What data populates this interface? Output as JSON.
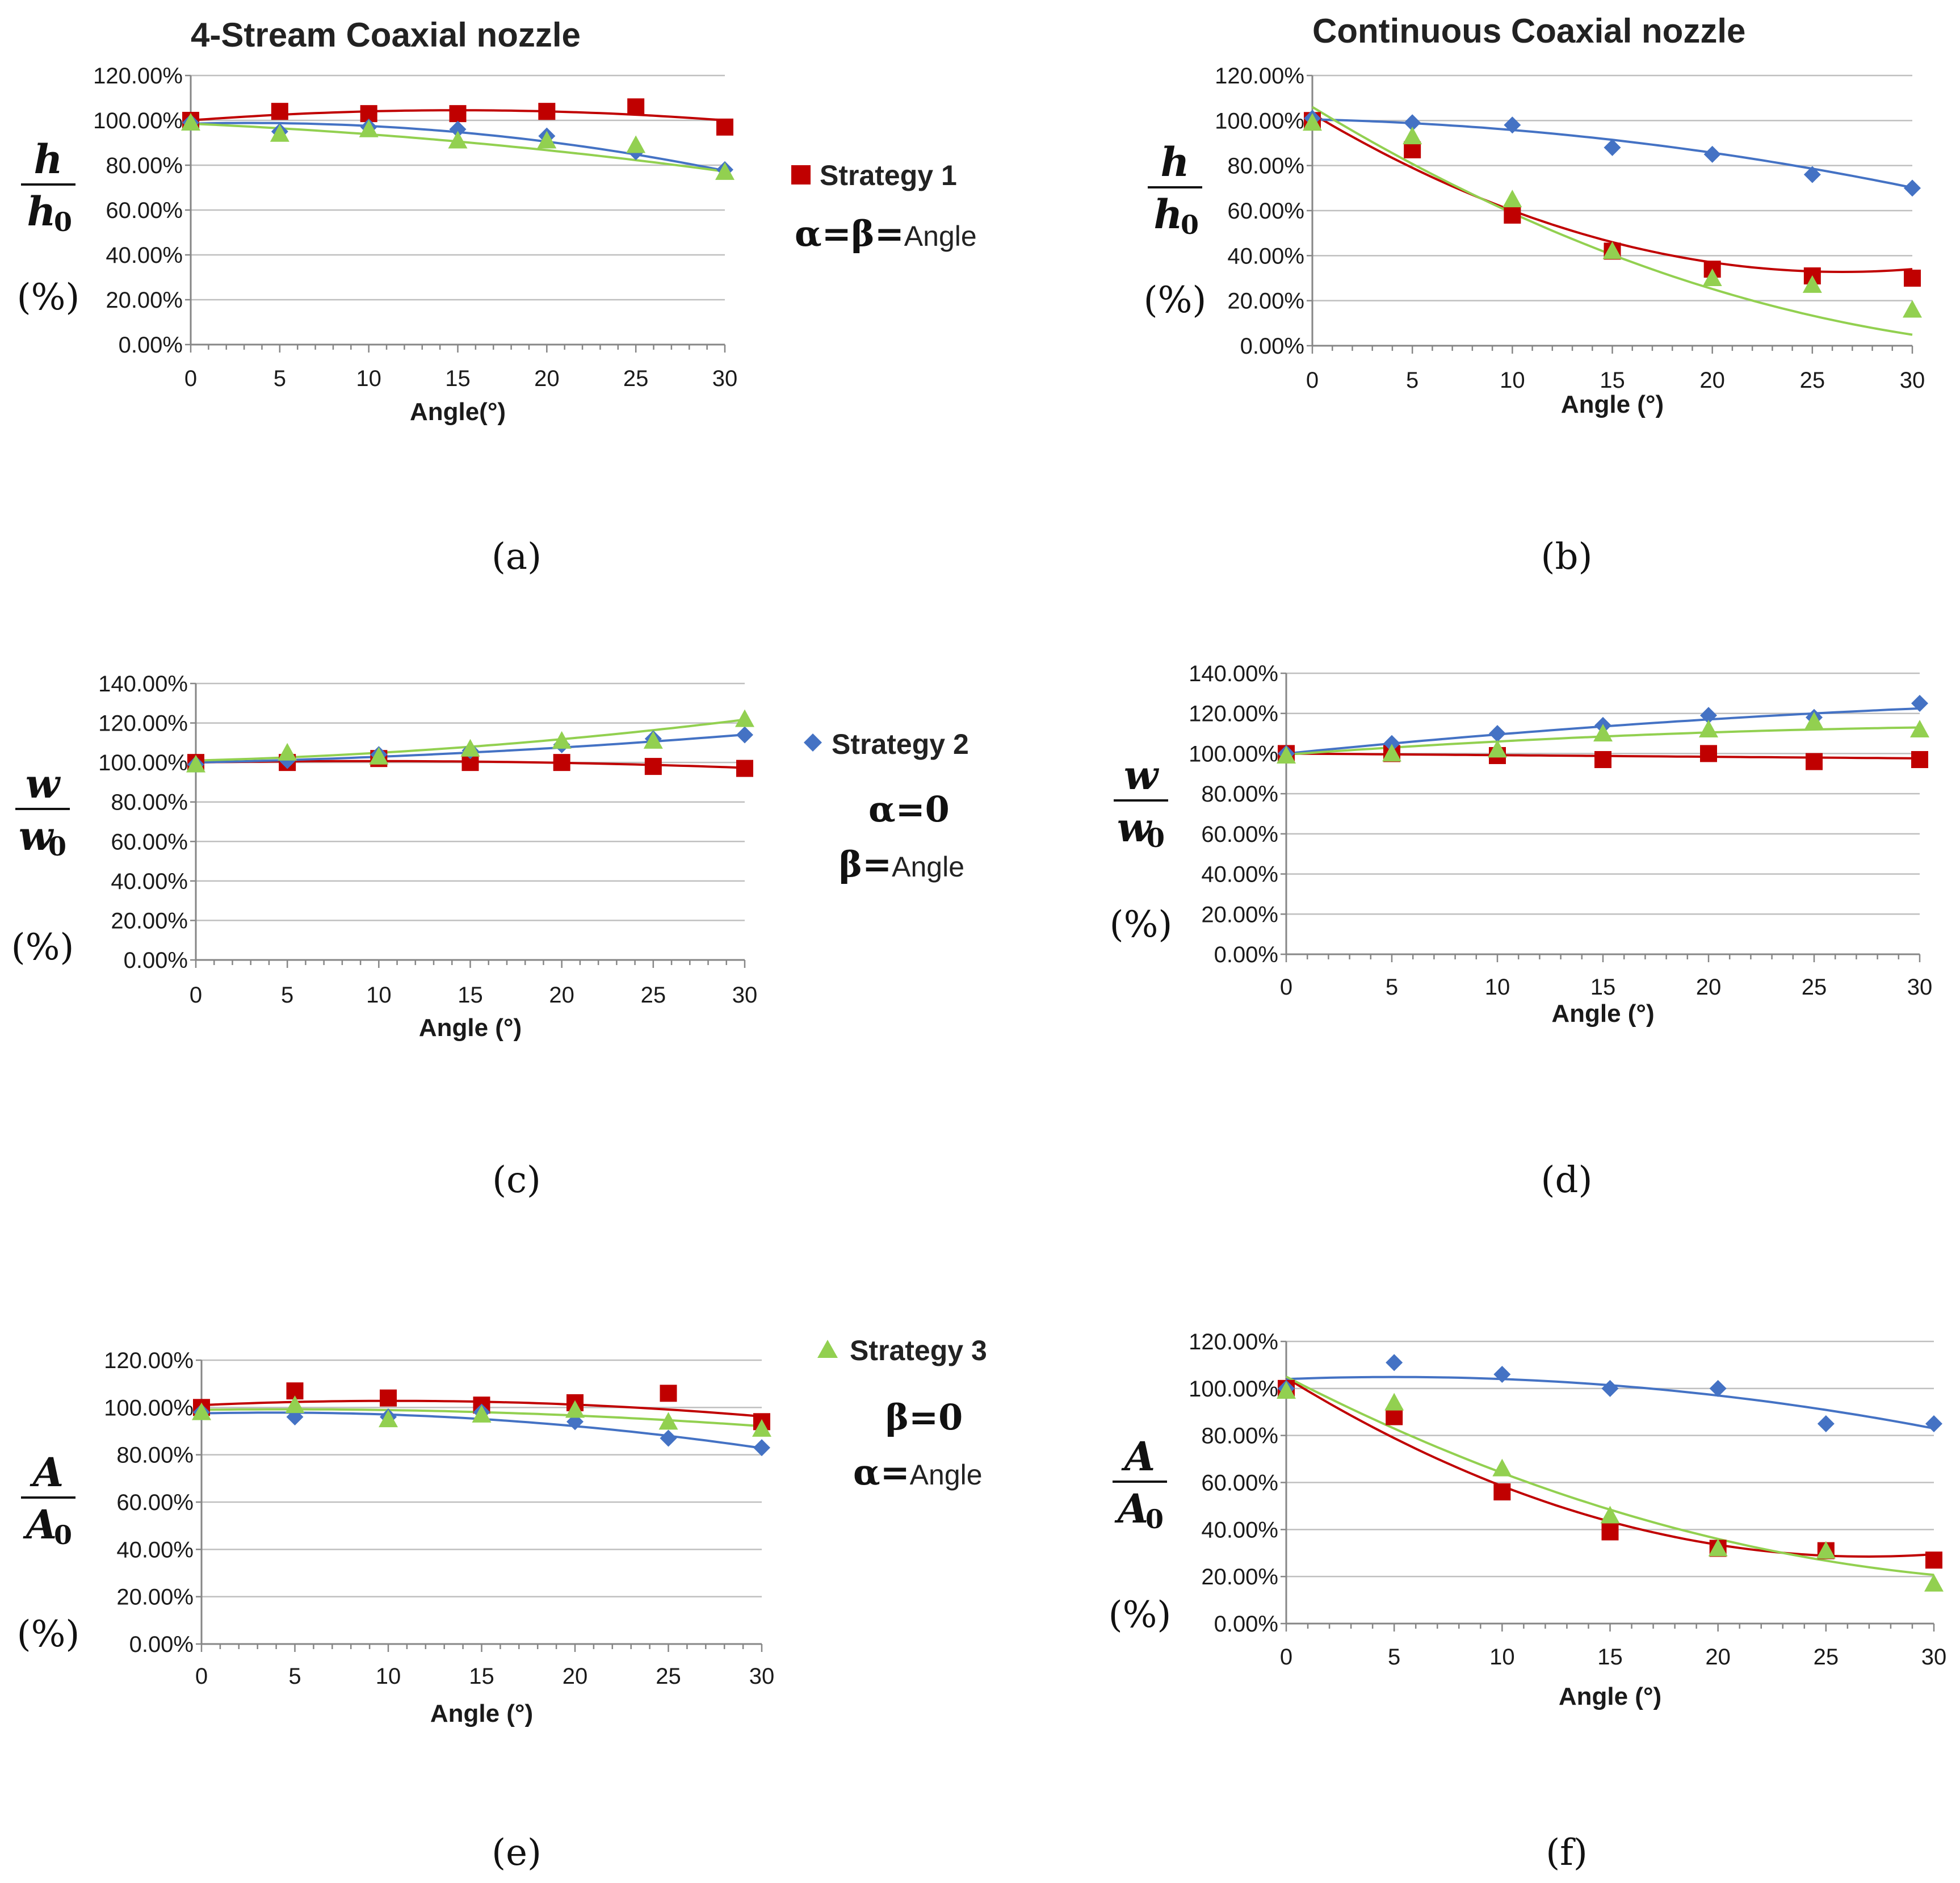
{
  "legend": [
    {
      "name": "Strategy 1",
      "marker": "square",
      "color": "#c00000",
      "condition": {
        "greek": "α=β=",
        "text": "Angle"
      }
    },
    {
      "name": "Strategy 2",
      "marker": "diamond",
      "color": "#4472c4",
      "condition": {
        "greek": "α=0",
        "sub_greek": "β=",
        "text": "Angle"
      }
    },
    {
      "name": "Strategy 3",
      "marker": "triangle",
      "color": "#92d050",
      "condition": {
        "greek": "β=0",
        "sub_greek": "α=",
        "text": "Angle"
      }
    }
  ],
  "chart_data": [
    {
      "id": "a",
      "type": "scatter",
      "title": "4-Stream Coaxial nozzle",
      "caption": "(a)",
      "xlabel": "Angle(°)",
      "ylabel": {
        "numerator": "h",
        "denominator": "h",
        "subscript": "0",
        "unit": "(%)"
      },
      "x": [
        0,
        5,
        10,
        15,
        20,
        25,
        30
      ],
      "xticks": [
        "0",
        "5",
        "10",
        "15",
        "20",
        "25",
        "30"
      ],
      "ylim": [
        0,
        1.2
      ],
      "ytick_step": 0.2,
      "ytick_labels": [
        "0.00%",
        "20.00%",
        "40.00%",
        "60.00%",
        "80.00%",
        "100.00%",
        "120.00%"
      ],
      "series": [
        {
          "name": "Strategy 1",
          "marker": "square",
          "color": "#c00000",
          "values": [
            1.0,
            1.04,
            1.03,
            1.03,
            1.04,
            1.06,
            0.97
          ],
          "trend": [
            1.0,
            0.006,
            -0.0002
          ]
        },
        {
          "name": "Strategy 2",
          "marker": "diamond",
          "color": "#4472c4",
          "values": [
            0.99,
            0.95,
            0.97,
            0.96,
            0.93,
            0.86,
            0.78
          ],
          "trend": [
            0.985,
            0.002,
            -0.0003
          ]
        },
        {
          "name": "Strategy 3",
          "marker": "triangle",
          "color": "#92d050",
          "values": [
            0.99,
            0.94,
            0.96,
            0.91,
            0.91,
            0.89,
            0.77
          ],
          "trend": [
            0.985,
            -0.0035,
            -0.00012
          ]
        }
      ]
    },
    {
      "id": "b",
      "type": "scatter",
      "title": "Continuous Coaxial nozzle",
      "caption": "(b)",
      "xlabel": "Angle (°)",
      "ylabel": {
        "numerator": "h",
        "denominator": "h",
        "subscript": "0",
        "unit": "(%)"
      },
      "x": [
        0,
        5,
        10,
        15,
        20,
        25,
        30
      ],
      "xticks": [
        "0",
        "5",
        "10",
        "15",
        "20",
        "25",
        "30"
      ],
      "ylim": [
        0,
        1.2
      ],
      "ytick_step": 0.2,
      "ytick_labels": [
        "0.00%",
        "20.00%",
        "40.00%",
        "60.00%",
        "80.00%",
        "100.00%",
        "120.00%"
      ],
      "series": [
        {
          "name": "Strategy 1",
          "marker": "square",
          "color": "#c00000",
          "values": [
            1.0,
            0.87,
            0.58,
            0.42,
            0.34,
            0.31,
            0.3
          ],
          "trend": [
            1.03,
            -0.053,
            0.001
          ]
        },
        {
          "name": "Strategy 2",
          "marker": "diamond",
          "color": "#4472c4",
          "values": [
            1.01,
            0.99,
            0.98,
            0.88,
            0.85,
            0.76,
            0.7
          ],
          "trend": [
            1.005,
            -0.002,
            -0.00027
          ]
        },
        {
          "name": "Strategy 3",
          "marker": "triangle",
          "color": "#92d050",
          "values": [
            0.99,
            0.93,
            0.65,
            0.42,
            0.3,
            0.27,
            0.16
          ],
          "trend": [
            1.06,
            -0.0538,
            0.00067
          ]
        }
      ]
    },
    {
      "id": "c",
      "type": "scatter",
      "title": "",
      "caption": "(c)",
      "xlabel": "Angle (°)",
      "ylabel": {
        "numerator": "w",
        "denominator": "w",
        "subscript": "0",
        "unit": "(%)"
      },
      "x": [
        0,
        5,
        10,
        15,
        20,
        25,
        30
      ],
      "xticks": [
        "0",
        "5",
        "10",
        "15",
        "20",
        "25",
        "30"
      ],
      "ylim": [
        0,
        1.4
      ],
      "ytick_step": 0.2,
      "ytick_labels": [
        "0.00%",
        "20.00%",
        "40.00%",
        "60.00%",
        "80.00%",
        "100.00%",
        "120.00%",
        "140.00%"
      ],
      "series": [
        {
          "name": "Strategy 1",
          "marker": "square",
          "color": "#c00000",
          "values": [
            1.0,
            1.0,
            1.02,
            1.0,
            1.0,
            0.98,
            0.97
          ],
          "trend": [
            1.0,
            0.0015,
            -8e-05
          ]
        },
        {
          "name": "Strategy 2",
          "marker": "diamond",
          "color": "#4472c4",
          "values": [
            0.99,
            1.01,
            1.04,
            1.06,
            1.09,
            1.12,
            1.14
          ],
          "trend": [
            1.0,
            0.002,
            9e-05
          ]
        },
        {
          "name": "Strategy 3",
          "marker": "triangle",
          "color": "#92d050",
          "values": [
            0.99,
            1.05,
            1.03,
            1.07,
            1.11,
            1.11,
            1.22
          ],
          "trend": [
            1.01,
            0.0024,
            0.00015
          ]
        }
      ]
    },
    {
      "id": "d",
      "type": "scatter",
      "title": "",
      "caption": "(d)",
      "xlabel": "Angle (°)",
      "ylabel": {
        "numerator": "w",
        "denominator": "w",
        "subscript": "0",
        "unit": "(%)"
      },
      "x": [
        0,
        5,
        10,
        15,
        20,
        25,
        30
      ],
      "xticks": [
        "0",
        "5",
        "10",
        "15",
        "20",
        "25",
        "30"
      ],
      "ylim": [
        0,
        1.4
      ],
      "ytick_step": 0.2,
      "ytick_labels": [
        "0.00%",
        "20.00%",
        "40.00%",
        "60.00%",
        "80.00%",
        "100.00%",
        "120.00%",
        "140.00%"
      ],
      "series": [
        {
          "name": "Strategy 1",
          "marker": "square",
          "color": "#c00000",
          "values": [
            1.0,
            1.0,
            0.99,
            0.97,
            1.0,
            0.96,
            0.97
          ],
          "trend": [
            1.0,
            -0.0008,
            0.0
          ]
        },
        {
          "name": "Strategy 2",
          "marker": "diamond",
          "color": "#4472c4",
          "values": [
            1.0,
            1.05,
            1.1,
            1.14,
            1.19,
            1.18,
            1.25
          ],
          "trend": [
            1.0,
            0.0105,
            -0.0001
          ]
        },
        {
          "name": "Strategy 3",
          "marker": "triangle",
          "color": "#92d050",
          "values": [
            0.99,
            1.0,
            1.02,
            1.1,
            1.12,
            1.16,
            1.12
          ],
          "trend": [
            0.995,
            0.0075,
            -0.0001
          ]
        }
      ]
    },
    {
      "id": "e",
      "type": "scatter",
      "title": "",
      "caption": "(e)",
      "xlabel": "Angle (°)",
      "ylabel": {
        "numerator": "A",
        "denominator": "A",
        "subscript": "0",
        "unit": "(%)"
      },
      "x": [
        0,
        5,
        10,
        15,
        20,
        25,
        30
      ],
      "xticks": [
        "0",
        "5",
        "10",
        "15",
        "20",
        "25",
        "30"
      ],
      "ylim": [
        0,
        1.2
      ],
      "ytick_step": 0.2,
      "ytick_labels": [
        "0.00%",
        "20.00%",
        "40.00%",
        "60.00%",
        "80.00%",
        "100.00%",
        "120.00%"
      ],
      "series": [
        {
          "name": "Strategy 1",
          "marker": "square",
          "color": "#c00000",
          "values": [
            1.0,
            1.07,
            1.04,
            1.01,
            1.02,
            1.06,
            0.94
          ],
          "trend": [
            1.01,
            0.0035,
            -0.00017
          ]
        },
        {
          "name": "Strategy 2",
          "marker": "diamond",
          "color": "#4472c4",
          "values": [
            0.98,
            0.96,
            0.96,
            0.98,
            0.94,
            0.87,
            0.83
          ],
          "trend": [
            0.975,
            0.0017,
            -0.00022
          ]
        },
        {
          "name": "Strategy 3",
          "marker": "triangle",
          "color": "#92d050",
          "values": [
            0.98,
            1.01,
            0.95,
            0.97,
            0.99,
            0.94,
            0.91
          ],
          "trend": [
            0.99,
            0.001,
            -0.00011
          ]
        }
      ]
    },
    {
      "id": "f",
      "type": "scatter",
      "title": "",
      "caption": "(f)",
      "xlabel": "Angle (°)",
      "ylabel": {
        "numerator": "A",
        "denominator": "A",
        "subscript": "0",
        "unit": "(%)"
      },
      "x": [
        0,
        5,
        10,
        15,
        20,
        25,
        30
      ],
      "xticks": [
        "0",
        "5",
        "10",
        "15",
        "20",
        "25",
        "30"
      ],
      "ylim": [
        0,
        1.2
      ],
      "ytick_step": 0.2,
      "ytick_labels": [
        "0.00%",
        "20.00%",
        "40.00%",
        "60.00%",
        "80.00%",
        "100.00%",
        "120.00%"
      ],
      "series": [
        {
          "name": "Strategy 1",
          "marker": "square",
          "color": "#c00000",
          "values": [
            1.0,
            0.88,
            0.56,
            0.39,
            0.32,
            0.31,
            0.27
          ],
          "trend": [
            1.045,
            -0.0565,
            0.00105
          ]
        },
        {
          "name": "Strategy 2",
          "marker": "diamond",
          "color": "#4472c4",
          "values": [
            1.0,
            1.11,
            1.06,
            1.0,
            1.0,
            0.85,
            0.85
          ],
          "trend": [
            1.04,
            0.0035,
            -0.00035
          ]
        },
        {
          "name": "Strategy 3",
          "marker": "triangle",
          "color": "#92d050",
          "values": [
            0.99,
            0.94,
            0.66,
            0.46,
            0.32,
            0.31,
            0.17
          ],
          "trend": [
            1.05,
            -0.0473,
            0.00064
          ]
        }
      ]
    }
  ]
}
